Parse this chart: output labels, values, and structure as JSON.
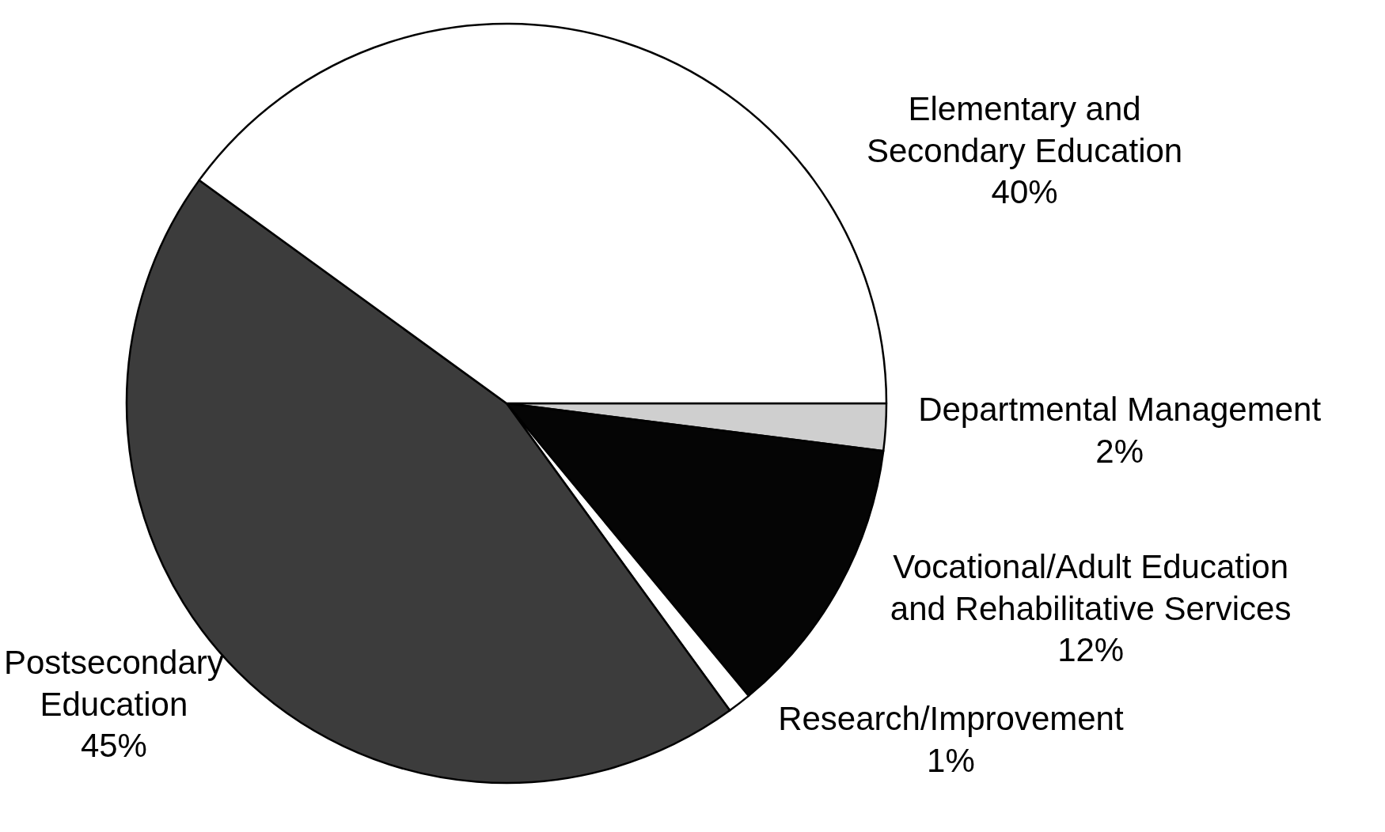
{
  "chart_data": {
    "type": "pie",
    "categories": [
      "Departmental Management",
      "Vocational/Adult Education and Rehabilitative Services",
      "Research/Improvement",
      "Postsecondary Education",
      "Elementary and Secondary Education"
    ],
    "values": [
      2,
      12,
      1,
      45,
      40
    ],
    "value_labels": [
      "2%",
      "12%",
      "1%",
      "45%",
      "40%"
    ],
    "colors": [
      "#cfcfcf",
      "#050505",
      "#ffffff",
      "#3c3c3c",
      "#ffffff"
    ]
  }
}
